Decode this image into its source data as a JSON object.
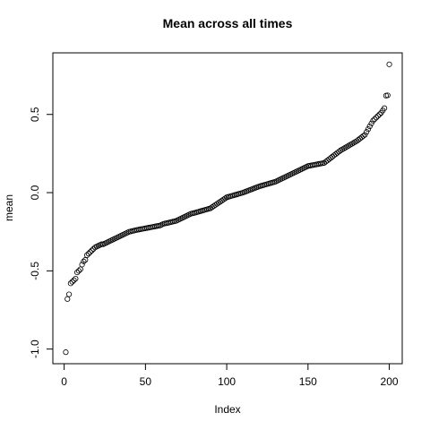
{
  "chart_data": {
    "type": "scatter",
    "title": "Mean across all times",
    "x_label": "Index",
    "y_label": "mean",
    "x": [
      1,
      2,
      3,
      4,
      5,
      6,
      7,
      8,
      9,
      10,
      11,
      12,
      13,
      14,
      15,
      16,
      17,
      18,
      19,
      20,
      21,
      22,
      23,
      24,
      25,
      26,
      27,
      28,
      29,
      30,
      31,
      32,
      33,
      34,
      35,
      36,
      37,
      38,
      39,
      40,
      41,
      42,
      43,
      44,
      45,
      46,
      47,
      48,
      49,
      50,
      51,
      52,
      53,
      54,
      55,
      56,
      57,
      58,
      59,
      60,
      61,
      62,
      63,
      64,
      65,
      66,
      67,
      68,
      69,
      70,
      71,
      72,
      73,
      74,
      75,
      76,
      77,
      78,
      79,
      80,
      81,
      82,
      83,
      84,
      85,
      86,
      87,
      88,
      89,
      90,
      91,
      92,
      93,
      94,
      95,
      96,
      97,
      98,
      99,
      100,
      101,
      102,
      103,
      104,
      105,
      106,
      107,
      108,
      109,
      110,
      111,
      112,
      113,
      114,
      115,
      116,
      117,
      118,
      119,
      120,
      121,
      122,
      123,
      124,
      125,
      126,
      127,
      128,
      129,
      130,
      131,
      132,
      133,
      134,
      135,
      136,
      137,
      138,
      139,
      140,
      141,
      142,
      143,
      144,
      145,
      146,
      147,
      148,
      149,
      150,
      151,
      152,
      153,
      154,
      155,
      156,
      157,
      158,
      159,
      160,
      161,
      162,
      163,
      164,
      165,
      166,
      167,
      168,
      169,
      170,
      171,
      172,
      173,
      174,
      175,
      176,
      177,
      178,
      179,
      180,
      181,
      182,
      183,
      184,
      185,
      186,
      187,
      188,
      189,
      190,
      191,
      192,
      193,
      194,
      195,
      196,
      197,
      198,
      199,
      200
    ],
    "values": [
      -1.02,
      -0.68,
      -0.65,
      -0.58,
      -0.57,
      -0.56,
      -0.55,
      -0.51,
      -0.5,
      -0.49,
      -0.46,
      -0.44,
      -0.43,
      -0.4,
      -0.39,
      -0.38,
      -0.37,
      -0.36,
      -0.35,
      -0.345,
      -0.34,
      -0.335,
      -0.33,
      -0.33,
      -0.325,
      -0.32,
      -0.315,
      -0.31,
      -0.305,
      -0.3,
      -0.295,
      -0.29,
      -0.285,
      -0.28,
      -0.275,
      -0.27,
      -0.265,
      -0.26,
      -0.255,
      -0.25,
      -0.248,
      -0.245,
      -0.243,
      -0.24,
      -0.238,
      -0.236,
      -0.234,
      -0.232,
      -0.23,
      -0.228,
      -0.226,
      -0.224,
      -0.222,
      -0.22,
      -0.218,
      -0.216,
      -0.214,
      -0.212,
      -0.21,
      -0.205,
      -0.2,
      -0.197,
      -0.195,
      -0.193,
      -0.19,
      -0.188,
      -0.185,
      -0.183,
      -0.18,
      -0.175,
      -0.17,
      -0.165,
      -0.16,
      -0.155,
      -0.15,
      -0.145,
      -0.14,
      -0.135,
      -0.132,
      -0.13,
      -0.127,
      -0.124,
      -0.121,
      -0.118,
      -0.115,
      -0.112,
      -0.109,
      -0.106,
      -0.103,
      -0.1,
      -0.093,
      -0.086,
      -0.079,
      -0.072,
      -0.065,
      -0.058,
      -0.051,
      -0.044,
      -0.037,
      -0.03,
      -0.027,
      -0.024,
      -0.021,
      -0.018,
      -0.015,
      -0.012,
      -0.009,
      -0.006,
      -0.003,
      0.0,
      0.004,
      0.008,
      0.012,
      0.016,
      0.02,
      0.024,
      0.028,
      0.032,
      0.036,
      0.04,
      0.043,
      0.046,
      0.049,
      0.052,
      0.055,
      0.058,
      0.061,
      0.064,
      0.067,
      0.07,
      0.075,
      0.08,
      0.085,
      0.09,
      0.095,
      0.1,
      0.105,
      0.11,
      0.115,
      0.12,
      0.125,
      0.13,
      0.135,
      0.14,
      0.145,
      0.15,
      0.155,
      0.16,
      0.165,
      0.17,
      0.172,
      0.174,
      0.176,
      0.178,
      0.18,
      0.182,
      0.184,
      0.186,
      0.188,
      0.19,
      0.198,
      0.206,
      0.214,
      0.222,
      0.23,
      0.238,
      0.246,
      0.254,
      0.262,
      0.27,
      0.276,
      0.282,
      0.288,
      0.294,
      0.3,
      0.306,
      0.312,
      0.318,
      0.324,
      0.33,
      0.338,
      0.346,
      0.354,
      0.362,
      0.37,
      0.388,
      0.406,
      0.424,
      0.442,
      0.46,
      0.47,
      0.48,
      0.49,
      0.5,
      0.51,
      0.525,
      0.54,
      0.62,
      0.622,
      0.82
    ],
    "color": "#000000",
    "xlim": [
      -6.96,
      207.96
    ],
    "xticks": [
      0,
      50,
      100,
      150,
      200
    ],
    "ylim": [
      -1.0936,
      0.8936
    ],
    "yticks": [
      {
        "value": -1.0,
        "label": "-1.0"
      },
      -0.5,
      {
        "value": 0.0,
        "label": "0.0"
      },
      0.5
    ],
    "grid": false
  }
}
